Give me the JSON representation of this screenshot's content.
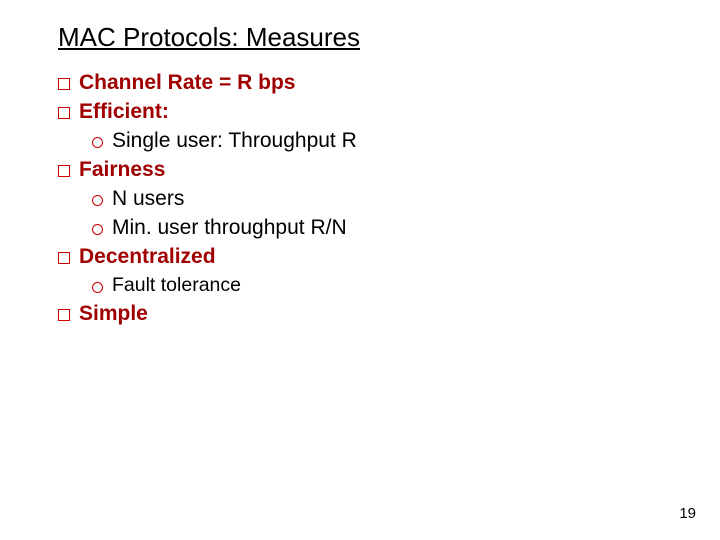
{
  "title": "MAC Protocols: Measures",
  "items": {
    "channel_rate": {
      "prefix": "Channel Rate = R bps"
    },
    "efficient": {
      "label": "Efficient:"
    },
    "single_user": {
      "text": "Single user: Throughput R"
    },
    "fairness": {
      "label": "Fairness"
    },
    "n_users": {
      "text": "N users"
    },
    "min_user": {
      "text": "Min. user throughput R/N"
    },
    "decentralized": {
      "label": "Decentralized"
    },
    "fault_tol": {
      "text": "Fault tolerance"
    },
    "simple": {
      "label": "Simple"
    }
  },
  "page_number": "19",
  "style": {
    "accent_color": "#cc0000",
    "heading_color": "#a00000",
    "text_color": "#000000",
    "background": "#ffffff",
    "title_fontsize": 26,
    "body_fontsize": 21,
    "sub_fontsize": 19.5,
    "font_family": "Comic Sans MS"
  }
}
